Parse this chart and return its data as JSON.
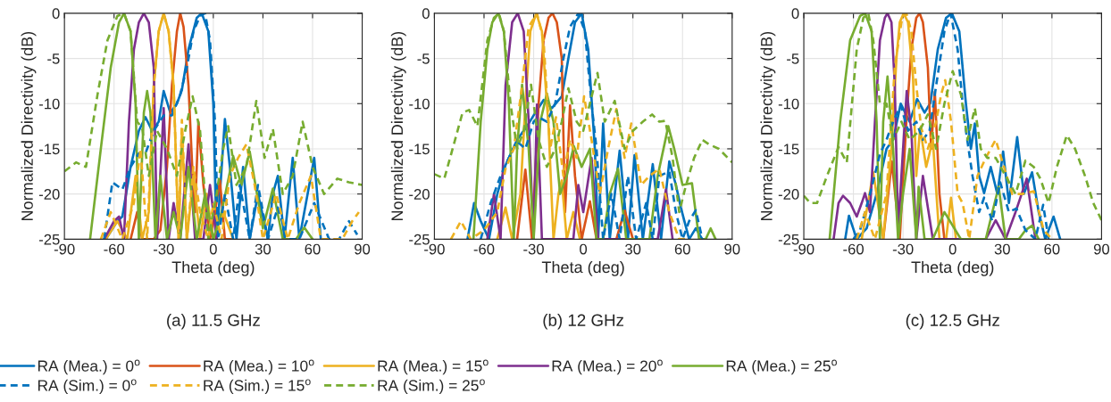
{
  "chart_data": [
    {
      "type": "line",
      "title": "(a) 11.5 GHz",
      "xlabel": "Theta (deg)",
      "ylabel": "Normalized Directivity (dB)",
      "xlim": [
        -90,
        90
      ],
      "ylim": [
        -25,
        0
      ],
      "xticks": [
        -90,
        -60,
        -30,
        0,
        30,
        60,
        90
      ],
      "yticks": [
        -25,
        -20,
        -15,
        -10,
        -5,
        0
      ],
      "grid": true,
      "legend": "bottom",
      "series": [
        {
          "name": "RA (Mea.) = 0$^{o}$",
          "color": "#0072bd",
          "line_style": "solid",
          "x": [
            -65,
            -58,
            -55,
            -50,
            -45,
            -41,
            -37,
            -33,
            -30,
            -26,
            -22,
            -19,
            -15,
            -10,
            -7,
            -3,
            0,
            2,
            4,
            7,
            10,
            14,
            18,
            22,
            27,
            33,
            36,
            39,
            43,
            48,
            52,
            57,
            61,
            65
          ],
          "values": [
            -25,
            -23,
            -22.5,
            -17,
            -13,
            -11.5,
            -13,
            -12,
            -8.6,
            -11,
            -10,
            -8.5,
            -4,
            -0.5,
            0,
            -2,
            -10,
            -25,
            -20,
            -11.7,
            -17,
            -25,
            -17,
            -25,
            -20,
            -25,
            -20,
            -18,
            -25,
            -16,
            -25,
            -20,
            -16,
            -25
          ]
        },
        {
          "name": "RA (Mea.) = 10$^{o}$",
          "color": "#d95319",
          "line_style": "solid",
          "x": [
            -50,
            -46,
            -43,
            -36,
            -32,
            -28,
            -25,
            -22,
            -20,
            -18,
            -15,
            -12,
            -11,
            -9,
            -6,
            -2,
            1,
            4,
            7,
            11
          ],
          "values": [
            -25,
            -22,
            -25,
            -25,
            -24,
            -17,
            -8,
            -2,
            0,
            -1.5,
            -8,
            -20,
            -22,
            -12,
            -19,
            -25,
            -22,
            -18.5,
            -25,
            -25
          ]
        },
        {
          "name": "RA (Mea.) = 15$^{o}$",
          "color": "#edb120",
          "line_style": "solid",
          "x": [
            -65,
            -58,
            -52,
            -47,
            -43,
            -39,
            -36,
            -33,
            -30,
            -27,
            -24,
            -21,
            -19,
            -16,
            -12,
            -8,
            -4,
            0,
            6,
            12
          ],
          "values": [
            -25,
            -23,
            -25,
            -18,
            -25,
            -22,
            -8,
            -2,
            0,
            -2,
            -8,
            -25,
            -13,
            -25,
            -18,
            -25,
            -20,
            -25,
            -22,
            -25
          ]
        },
        {
          "name": "RA (Mea.) = 20$^{o}$",
          "color": "#7e2f8e",
          "line_style": "solid",
          "x": [
            -66,
            -60,
            -57,
            -54,
            -51,
            -48,
            -45,
            -42,
            -39,
            -36,
            -34,
            -30,
            -27,
            -24,
            -20,
            -15,
            -11,
            -6,
            -2,
            2
          ],
          "values": [
            -25,
            -23,
            -22.5,
            -25,
            -12,
            -4,
            -1,
            0,
            -1,
            -6,
            -25,
            -10.5,
            -25,
            -21,
            -25,
            -14.5,
            -25,
            -25,
            -19,
            -25
          ]
        },
        {
          "name": "RA (Mea.) = 25$^{o}$",
          "color": "#77ac30",
          "line_style": "solid",
          "x": [
            -74.5,
            -68,
            -62,
            -57,
            -54,
            -50,
            -47,
            -45,
            -42,
            -40,
            -38,
            -35,
            -32,
            -28,
            -24,
            -20,
            -15,
            -10,
            -5,
            0,
            5,
            12,
            17,
            22,
            30,
            36,
            42,
            50,
            55,
            60
          ],
          "values": [
            -25,
            -15,
            -6,
            -1,
            0,
            -2,
            -10,
            -25,
            -11,
            -8.6,
            -11,
            -25,
            -18,
            -25,
            -22,
            -25,
            -17,
            -25,
            -20,
            -25,
            -22,
            -15.8,
            -19,
            -15.3,
            -23.8,
            -19.4,
            -25,
            -25,
            -23.7,
            -25
          ]
        },
        {
          "name": "RA (Sim.) = 0$^{o}$",
          "color": "#0072bd",
          "line_style": "dashed",
          "x": [
            -66,
            -61,
            -55,
            -50,
            -45,
            -41,
            -36,
            -30,
            -25,
            -20,
            -16,
            -12,
            -8,
            -5,
            -2,
            1,
            3,
            7,
            12,
            16,
            22,
            27,
            33,
            39,
            45,
            52,
            61,
            70,
            76,
            82,
            87
          ],
          "values": [
            -25,
            -18.7,
            -19.5,
            -17,
            -15.5,
            -15.5,
            -13,
            -11.3,
            -11.3,
            -9,
            -6,
            -2,
            -0.3,
            0,
            -3,
            -12,
            -25,
            -20,
            -25,
            -19,
            -25,
            -19,
            -25,
            -21.5,
            -25,
            -25,
            -21,
            -25,
            -25,
            -23,
            -24.5
          ]
        },
        {
          "name": "RA (Sim.) = 15$^{o}$",
          "color": "#edb120",
          "line_style": "dashed",
          "x": [
            -68,
            -62,
            -55,
            -48,
            -44,
            -40,
            -36,
            -33,
            -30,
            -27,
            -24,
            -21,
            -19,
            -16,
            -12,
            -8,
            -3,
            0,
            5,
            10,
            15,
            20,
            25,
            30,
            38,
            45,
            52,
            59,
            65,
            72,
            78,
            84,
            88
          ],
          "values": [
            -25,
            -22,
            -25,
            -21,
            -15,
            -25,
            -8,
            -2,
            0,
            -2,
            -8,
            -25,
            -11.8,
            -25,
            -17,
            -22,
            -25,
            -21,
            -25,
            -18,
            -16,
            -14.5,
            -19,
            -25,
            -20,
            -25,
            -21,
            -18,
            -25,
            -25,
            -25,
            -23,
            -22
          ]
        },
        {
          "name": "RA (Sim.) = 25$^{o}$",
          "color": "#77ac30",
          "line_style": "dashed",
          "x": [
            -90,
            -83,
            -77,
            -70,
            -64,
            -58,
            -54,
            -50,
            -46,
            -43,
            -39,
            -34,
            -28,
            -22,
            -17,
            -12.5,
            -8,
            -3,
            2,
            6,
            9,
            14,
            20,
            26,
            31,
            36,
            42,
            48,
            54,
            60,
            67,
            75,
            82,
            90
          ],
          "values": [
            -17.5,
            -16.5,
            -17,
            -9,
            -3,
            -0.3,
            0,
            -2,
            -12,
            -12.7,
            -18,
            -13,
            -15,
            -18,
            -13,
            -9.2,
            -13,
            -25,
            -20,
            -15,
            -12.5,
            -19,
            -17,
            -9.7,
            -16,
            -12.8,
            -20,
            -18,
            -12,
            -17,
            -20,
            -18.3,
            -18.7,
            -19
          ]
        }
      ]
    },
    {
      "type": "line",
      "title": "(b) 12 GHz",
      "xlabel": "Theta (deg)",
      "ylabel": "Normalized Directivity (dB)",
      "xlim": [
        -90,
        90
      ],
      "ylim": [
        -25,
        0
      ],
      "xticks": [
        -90,
        -60,
        -30,
        0,
        30,
        60,
        90
      ],
      "yticks": [
        -25,
        -20,
        -15,
        -10,
        -5,
        0
      ],
      "grid": true,
      "series": [
        {
          "color": "#0072bd",
          "line_style": "solid",
          "x": [
            -70,
            -66,
            -62,
            -57,
            -52,
            -47,
            -40,
            -34,
            -29,
            -24,
            -19,
            -13,
            -9,
            -5,
            -1,
            3,
            7,
            9,
            12,
            16,
            22,
            27,
            31,
            36,
            42,
            47,
            52,
            56,
            59,
            64,
            68,
            72
          ],
          "values": [
            -25,
            -21,
            -23,
            -25,
            -20,
            -16.8,
            -14,
            -12.5,
            -11,
            -9.6,
            -10.5,
            -9.2,
            -5,
            -1,
            0,
            -4,
            -15,
            -25,
            -12.2,
            -25,
            -15.2,
            -25,
            -15.7,
            -25,
            -16.7,
            -25,
            -16.4,
            -19,
            -21.5,
            -25,
            -23.8,
            -25
          ]
        },
        {
          "color": "#d95319",
          "line_style": "solid",
          "x": [
            -40,
            -35,
            -31,
            -27,
            -24,
            -21,
            -18.6,
            -16,
            -13,
            -11,
            -8,
            -5,
            -1,
            4,
            8,
            15,
            20,
            25,
            30
          ],
          "values": [
            -25,
            -17.3,
            -25,
            -10,
            -3,
            -0.5,
            0,
            -1,
            -5,
            -22,
            -10.2,
            -18,
            -25,
            -20.8,
            -25,
            -25,
            -25,
            -21.8,
            -25
          ]
        },
        {
          "color": "#edb120",
          "line_style": "solid",
          "x": [
            -52,
            -47,
            -43,
            -38,
            -35,
            -32,
            -28.4,
            -25,
            -22,
            -21,
            -18,
            -15,
            -13,
            -10,
            -6,
            -2
          ],
          "values": [
            -25,
            -21.5,
            -25,
            -20,
            -10,
            -2,
            0,
            -2,
            -10,
            -12.5,
            -25,
            -20,
            -18.5,
            -25,
            -22,
            -25
          ]
        },
        {
          "color": "#7e2f8e",
          "line_style": "solid",
          "x": [
            -58,
            -54,
            -50,
            -47,
            -43,
            -39.6,
            -36,
            -33,
            -30,
            -28,
            -25,
            -20,
            -15,
            -10,
            -6,
            -3,
            0,
            5,
            9,
            20,
            30,
            40,
            45,
            50,
            54
          ],
          "values": [
            -25,
            -20,
            -25,
            -8,
            -1,
            0,
            -2,
            -12,
            -25,
            -10.1,
            -25,
            -25,
            -25,
            -25,
            -25,
            -19,
            -22,
            -16,
            -25,
            -25,
            -25,
            -25,
            -25,
            -19.5,
            -25
          ]
        },
        {
          "color": "#77ac30",
          "line_style": "solid",
          "x": [
            -66.4,
            -62,
            -58,
            -55,
            -51.3,
            -48,
            -45,
            -42,
            -40,
            -37,
            -33,
            -30,
            -26,
            -22,
            -18,
            -14,
            -10,
            -5.7,
            -1,
            4,
            8,
            12,
            16,
            21,
            26,
            32,
            40,
            45,
            51.4,
            55,
            60,
            65.7,
            70,
            74,
            77,
            80
          ],
          "values": [
            -25,
            -12,
            -4,
            -1,
            0,
            -2,
            -10,
            -25,
            -15,
            -7.9,
            -15,
            -25,
            -12,
            -8.9,
            -12,
            -20,
            -18,
            -14.7,
            -17,
            -15,
            -25,
            -25,
            -20,
            -17.2,
            -25,
            -25,
            -25,
            -18,
            -12.5,
            -15,
            -19,
            -18.8,
            -25,
            -25,
            -23.8,
            -25
          ]
        },
        {
          "color": "#0072bd",
          "line_style": "dashed",
          "x": [
            -62,
            -56,
            -50,
            -45,
            -40,
            -35,
            -30,
            -27,
            -22,
            -17,
            -12,
            -8,
            -3,
            1,
            5,
            8,
            12,
            17,
            22,
            27,
            32,
            38,
            42,
            46,
            52,
            56,
            60,
            64,
            68,
            72
          ],
          "values": [
            -25,
            -21,
            -18,
            -16,
            -14.2,
            -15,
            -12,
            -11.5,
            -12,
            -10,
            -5,
            -1.5,
            0,
            -2,
            -10,
            -15,
            -25,
            -20,
            -25,
            -18,
            -25,
            -21,
            -25,
            -18,
            -17.5,
            -22,
            -25,
            -23,
            -21.8,
            -25
          ]
        },
        {
          "color": "#edb120",
          "line_style": "dashed",
          "x": [
            -80,
            -74,
            -68,
            -60,
            -52,
            -47,
            -42,
            -37,
            -33,
            -28,
            -24,
            -20,
            -16.5,
            -12,
            -8,
            -4,
            0.5,
            5,
            10,
            15,
            20,
            25,
            29,
            35,
            40,
            46,
            52,
            58,
            64
          ],
          "values": [
            -25,
            -23,
            -25,
            -24,
            -22,
            -17.2,
            -15,
            -8,
            -1.5,
            0,
            -3,
            -15,
            -11.5,
            -18,
            -14,
            -16,
            -9.2,
            -14,
            -20,
            -15,
            -10.6,
            -16,
            -12.2,
            -19,
            -18,
            -17.2,
            -22,
            -25,
            -25
          ]
        },
        {
          "color": "#77ac30",
          "line_style": "dashed",
          "x": [
            -90,
            -84,
            -79,
            -73,
            -69,
            -64,
            -58,
            -54,
            -51,
            -48,
            -44,
            -40,
            -36,
            -31.6,
            -27,
            -22,
            -17,
            -13,
            -9,
            -4,
            0,
            4,
            8.6,
            13,
            19,
            25,
            30,
            36,
            41.6,
            46,
            49.6,
            54,
            58,
            62,
            67,
            72,
            76,
            82,
            90
          ],
          "values": [
            -17.8,
            -18.3,
            -15,
            -11,
            -10.7,
            -12.5,
            -3,
            -0.5,
            0,
            -2,
            -10,
            -15,
            -13,
            -7.9,
            -14,
            -17,
            -15,
            -12,
            -8.3,
            -12,
            -13,
            -10,
            -6.6,
            -12,
            -9.7,
            -15,
            -13,
            -12,
            -11.2,
            -12,
            -11.9,
            -16,
            -22,
            -19.1,
            -16,
            -14,
            -14.5,
            -15,
            -16.5
          ]
        }
      ]
    },
    {
      "type": "line",
      "title": "(c) 12.5 GHz",
      "xlabel": "Theta (deg)",
      "ylabel": "Normalized Directivity (dB)",
      "xlim": [
        -90,
        90
      ],
      "ylim": [
        -25,
        0
      ],
      "xticks": [
        -90,
        -60,
        -30,
        0,
        30,
        60,
        90
      ],
      "yticks": [
        -25,
        -20,
        -15,
        -10,
        -5,
        0
      ],
      "grid": true,
      "series": [
        {
          "color": "#0072bd",
          "line_style": "solid",
          "x": [
            -65,
            -62.7,
            -58,
            -52,
            -46,
            -40,
            -36,
            -31.4,
            -26,
            -21.5,
            -17,
            -13.4,
            -9,
            -4,
            -0.5,
            4,
            8,
            11,
            13.4,
            16,
            19,
            23,
            27,
            30.5,
            34,
            39,
            43,
            48,
            52,
            56,
            61,
            65
          ],
          "values": [
            -25,
            -22.4,
            -25,
            -23.8,
            -20,
            -15,
            -14,
            -10,
            -12,
            -9.5,
            -11,
            -9.9,
            -4,
            -0.5,
            0,
            -2,
            -10,
            -15,
            -12.2,
            -18,
            -19.9,
            -17,
            -20,
            -15.3,
            -21,
            -13.7,
            -20,
            -17.6,
            -22,
            -25,
            -22.5,
            -25
          ]
        },
        {
          "color": "#d95319",
          "line_style": "solid",
          "x": [
            -42,
            -36.8,
            -32,
            -28,
            -25,
            -22,
            -20,
            -18,
            -15,
            -13,
            -10.8,
            -8,
            -5
          ],
          "values": [
            -25,
            -16.4,
            -25,
            -12,
            -4,
            -0.5,
            0,
            -1,
            -6,
            -15,
            -8.7,
            -20,
            -25
          ]
        },
        {
          "color": "#edb120",
          "line_style": "solid",
          "x": [
            -55,
            -48,
            -42,
            -37,
            -34,
            -32,
            -29.6,
            -27,
            -24,
            -22,
            -19.7,
            -16,
            -12,
            -8,
            -4,
            -1,
            2
          ],
          "values": [
            -25,
            -17.6,
            -25,
            -15,
            -5,
            -1,
            0,
            -1,
            -7,
            -18,
            -12.7,
            -17,
            -14,
            -25,
            -25,
            -20.4,
            -25
          ]
        },
        {
          "color": "#7e2f8e",
          "line_style": "solid",
          "x": [
            -72,
            -69,
            -66.3,
            -62,
            -58,
            -55,
            -53,
            -50,
            -47,
            -44,
            -41,
            -39.4,
            -37,
            -35,
            -33,
            -30,
            -27.8,
            -25,
            -22,
            -18,
            -12,
            -6,
            0,
            10,
            20,
            26,
            32,
            38,
            44.8,
            50
          ],
          "values": [
            -25,
            -21,
            -20.2,
            -21,
            -22.5,
            -21,
            -19.9,
            -22,
            -12,
            -3,
            -0.5,
            0,
            -1,
            -8,
            -24,
            -15,
            -8.6,
            -13,
            -25,
            -18,
            -25,
            -25,
            -25,
            -25,
            -25,
            -22.9,
            -25,
            -22,
            -18.3,
            -25
          ]
        },
        {
          "color": "#77ac30",
          "line_style": "solid",
          "x": [
            -74.4,
            -68,
            -62,
            -56,
            -52.9,
            -49,
            -46,
            -44,
            -42,
            -39.4,
            -36,
            -33,
            -30,
            -26,
            -22,
            -20.6,
            -17,
            -12,
            -5,
            5,
            12,
            20,
            24,
            27.8,
            32,
            40,
            44,
            48,
            52
          ],
          "values": [
            -25,
            -12,
            -3,
            -0.3,
            0,
            -2,
            -12,
            -25,
            -12,
            -7,
            -15,
            -25,
            -20,
            -15,
            -25,
            -19.2,
            -25,
            -25,
            -22,
            -25,
            -25,
            -25,
            -22,
            -19.2,
            -25,
            -25,
            -24,
            -23.5,
            -25
          ]
        },
        {
          "color": "#0072bd",
          "line_style": "dashed",
          "x": [
            -60,
            -56,
            -50,
            -44,
            -40,
            -36,
            -31.4,
            -27,
            -22,
            -18,
            -14,
            -10,
            -5,
            -1.3,
            3,
            6,
            8,
            12,
            16,
            19,
            24,
            28.7,
            34,
            38.5,
            44,
            50,
            54.7,
            58
          ],
          "values": [
            -25,
            -24,
            -20,
            -15.6,
            -14,
            -12,
            -10.2,
            -13,
            -12,
            -14,
            -13,
            -8,
            -2,
            0,
            -4,
            -10,
            -13,
            -18,
            -22,
            -20.4,
            -23,
            -18.7,
            -22,
            -21.6,
            -24,
            -25,
            -21.2,
            -25
          ]
        },
        {
          "color": "#edb120",
          "line_style": "dashed",
          "x": [
            -58,
            -53,
            -47,
            -40,
            -35,
            -31,
            -28,
            -25,
            -22,
            -19,
            -15,
            -10,
            -7,
            -4.5,
            -1,
            3,
            6,
            10,
            15,
            20,
            26,
            31,
            36,
            42,
            49,
            55,
            60
          ],
          "values": [
            -25,
            -22,
            -25,
            -20,
            -6,
            -1,
            0,
            -2,
            -8,
            -12.7,
            -15,
            -12,
            -9,
            -7.4,
            -12,
            -20,
            -21,
            -25,
            -18,
            -16,
            -14,
            -17,
            -20,
            -20,
            -19.7,
            -24,
            -25
          ]
        },
        {
          "color": "#77ac30",
          "line_style": "dashed",
          "x": [
            -90,
            -86,
            -82,
            -76,
            -69,
            -64,
            -58,
            -54,
            -51,
            -48,
            -44,
            -40,
            -36,
            -31,
            -26,
            -20,
            -15,
            -10,
            -5,
            0,
            5,
            9,
            13.4,
            17,
            21,
            26,
            32,
            38,
            44,
            49,
            53,
            58,
            63,
            69,
            74,
            80,
            85,
            90
          ],
          "values": [
            -20.2,
            -21,
            -21,
            -18,
            -14.8,
            -16.5,
            -4,
            -0.5,
            0,
            -3,
            -10,
            -10,
            -14,
            -12,
            -14,
            -13,
            -11.2,
            -15,
            -10,
            -6.4,
            -9,
            -14,
            -10.5,
            -15,
            -16,
            -16,
            -18,
            -20,
            -16.3,
            -17,
            -18.3,
            -21,
            -17,
            -13.5,
            -15,
            -18,
            -21,
            -22.9
          ]
        }
      ]
    }
  ]
}
